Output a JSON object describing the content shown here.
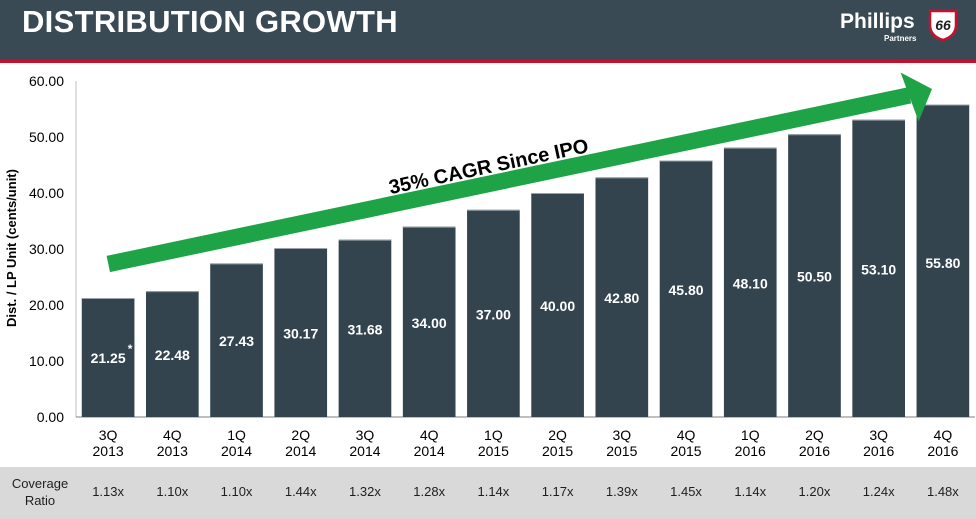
{
  "header": {
    "title": "DISTRIBUTION GROWTH",
    "logo_word": "Phillips",
    "logo_number": "66",
    "logo_sub": "Partners"
  },
  "colors": {
    "header_bg": "#3a4a55",
    "accent_red": "#c8102e",
    "bar": "#34444e",
    "arrow": "#1ea446",
    "coverage_bg": "#d9d9d9"
  },
  "chart_data": {
    "type": "bar",
    "ylabel": "Dist. / LP Unit (cents/unit)",
    "ylim": [
      0,
      60
    ],
    "yticks": [
      "0.00",
      "10.00",
      "20.00",
      "30.00",
      "40.00",
      "50.00",
      "60.00"
    ],
    "grid": false,
    "categories": [
      [
        "3Q",
        "2013"
      ],
      [
        "4Q",
        "2013"
      ],
      [
        "1Q",
        "2014"
      ],
      [
        "2Q",
        "2014"
      ],
      [
        "3Q",
        "2014"
      ],
      [
        "4Q",
        "2014"
      ],
      [
        "1Q",
        "2015"
      ],
      [
        "2Q",
        "2015"
      ],
      [
        "3Q",
        "2015"
      ],
      [
        "4Q",
        "2015"
      ],
      [
        "1Q",
        "2016"
      ],
      [
        "2Q",
        "2016"
      ],
      [
        "3Q",
        "2016"
      ],
      [
        "4Q",
        "2016"
      ]
    ],
    "values": [
      21.25,
      22.48,
      27.43,
      30.17,
      31.68,
      34.0,
      37.0,
      40.0,
      42.8,
      45.8,
      48.1,
      50.5,
      53.1,
      55.8
    ],
    "value_labels": [
      "21.25",
      "22.48",
      "27.43",
      "30.17",
      "31.68",
      "34.00",
      "37.00",
      "40.00",
      "42.80",
      "45.80",
      "48.10",
      "50.50",
      "53.10",
      "55.80"
    ],
    "first_bar_footnote": "*",
    "annotation": "35% CAGR Since IPO"
  },
  "coverage": {
    "label_line1": "Coverage",
    "label_line2": "Ratio",
    "values": [
      "1.13x",
      "1.10x",
      "1.10x",
      "1.44x",
      "1.32x",
      "1.28x",
      "1.14x",
      "1.17x",
      "1.39x",
      "1.45x",
      "1.14x",
      "1.20x",
      "1.24x",
      "1.48x"
    ]
  }
}
